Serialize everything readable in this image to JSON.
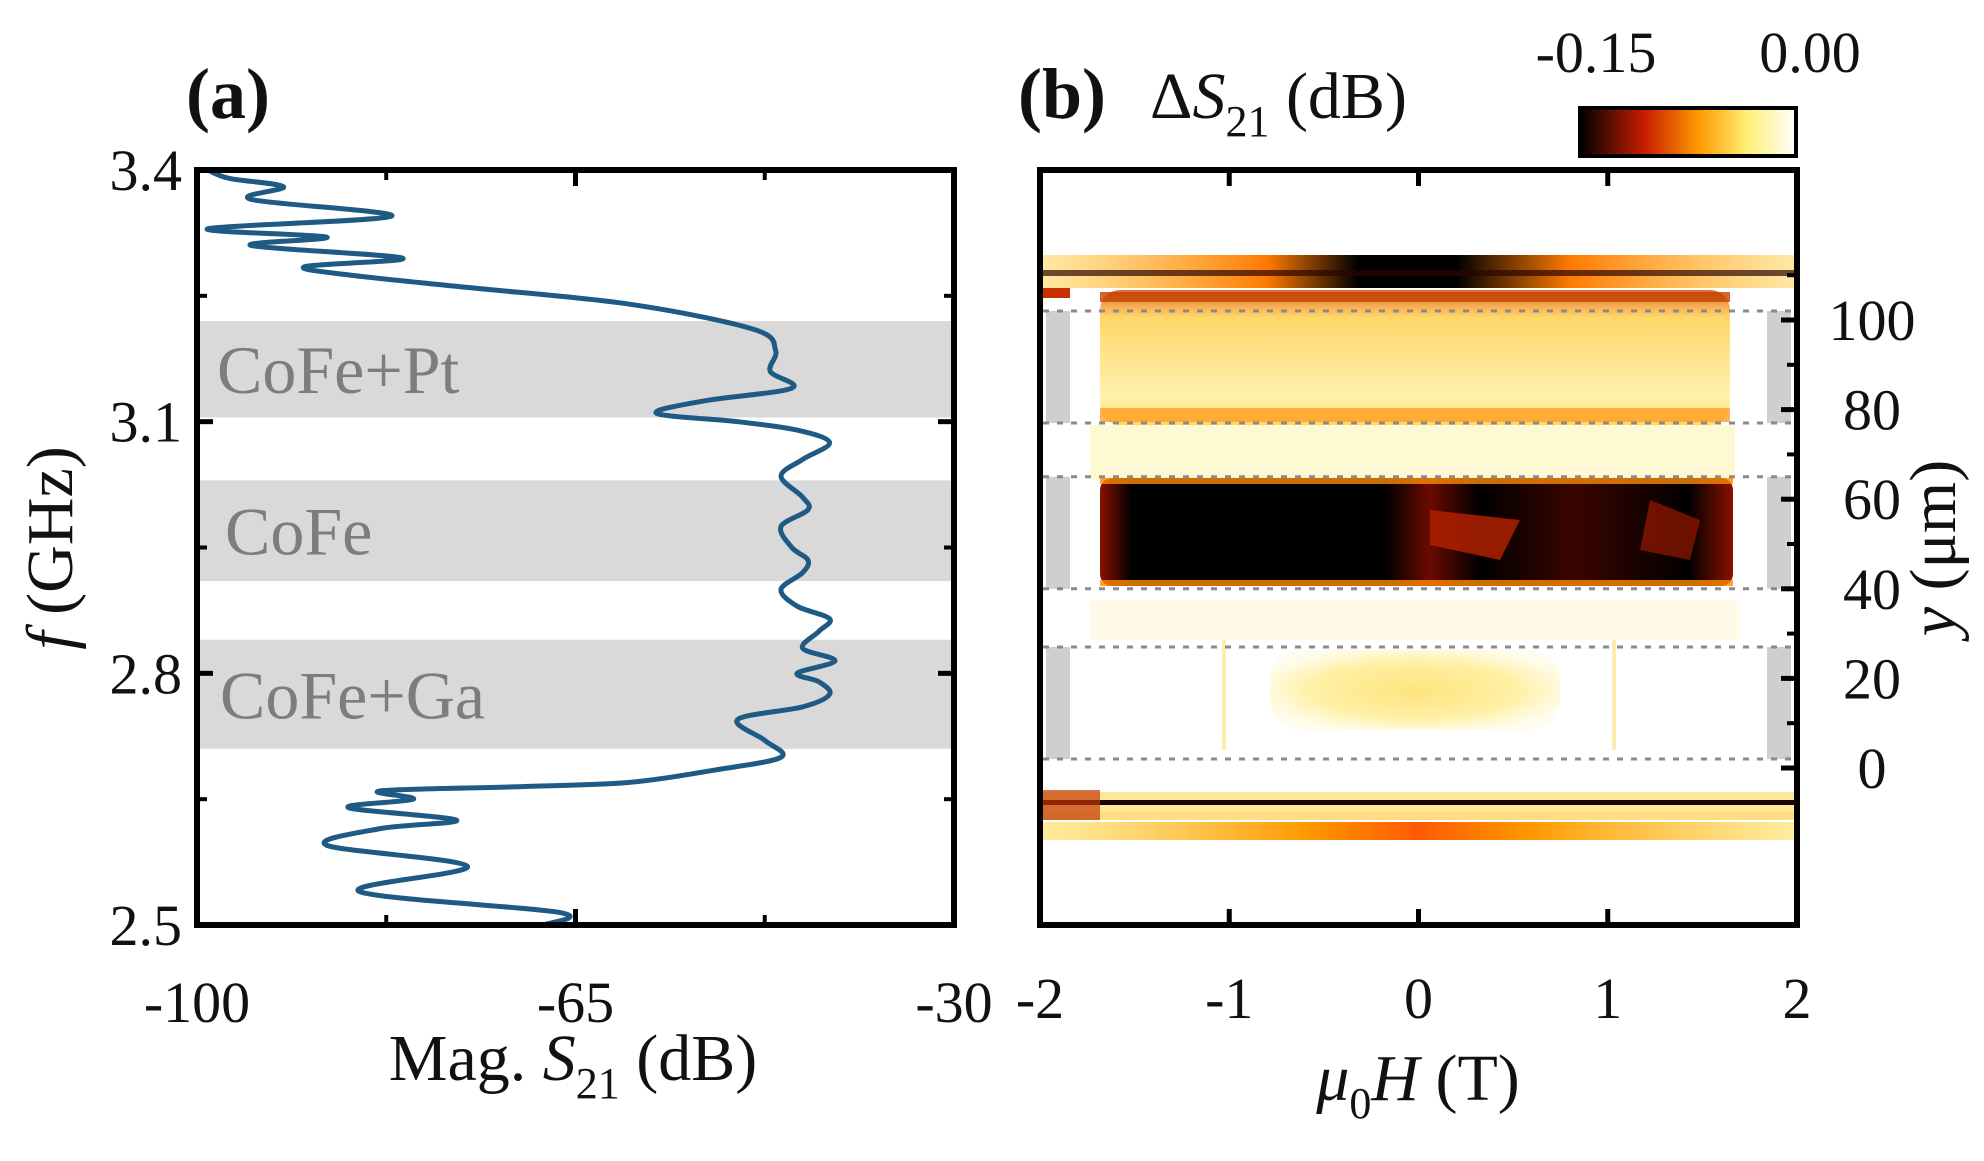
{
  "chart_data": [
    {
      "panel_label": "(a)",
      "type": "line",
      "xlabel": "Mag. S21 (dB)",
      "ylabel": "f (GHz)",
      "xlim": [
        -100,
        -30
      ],
      "ylim": [
        2.5,
        3.4
      ],
      "xticks": [
        "-100",
        "-65",
        "-30"
      ],
      "yticks": [
        "2.5",
        "2.8",
        "3.1",
        "3.4"
      ],
      "line_color": "#1f5a85",
      "bands": [
        {
          "label": "CoFe+Pt",
          "range": [
            3.105,
            3.22
          ],
          "color": "#d9d9d9"
        },
        {
          "label": "CoFe",
          "range": [
            2.91,
            3.03
          ],
          "color": "#d9d9d9"
        },
        {
          "label": "CoFe+Ga",
          "range": [
            2.71,
            2.84
          ],
          "color": "#d9d9d9"
        }
      ],
      "series": [
        {
          "points": [
            [
              -68.0,
              2.5
            ],
            [
              -66.5,
              2.515
            ],
            [
              -85.0,
              2.54
            ],
            [
              -75.0,
              2.57
            ],
            [
              -88.0,
              2.595
            ],
            [
              -83.0,
              2.615
            ],
            [
              -76.0,
              2.625
            ],
            [
              -86.0,
              2.64
            ],
            [
              -80.0,
              2.65
            ],
            [
              -83.0,
              2.66
            ],
            [
              -70.0,
              2.665
            ],
            [
              -60.0,
              2.67
            ],
            [
              -52.0,
              2.685
            ],
            [
              -46.0,
              2.7
            ],
            [
              -47.5,
              2.72
            ],
            [
              -50.0,
              2.745
            ],
            [
              -44.0,
              2.76
            ],
            [
              -41.5,
              2.775
            ],
            [
              -42.5,
              2.79
            ],
            [
              -44.5,
              2.8
            ],
            [
              -41.0,
              2.815
            ],
            [
              -44.0,
              2.83
            ],
            [
              -42.5,
              2.85
            ],
            [
              -41.5,
              2.865
            ],
            [
              -44.5,
              2.88
            ],
            [
              -46.0,
              2.9
            ],
            [
              -44.0,
              2.92
            ],
            [
              -43.5,
              2.935
            ],
            [
              -45.0,
              2.95
            ],
            [
              -46.0,
              2.975
            ],
            [
              -43.5,
              2.995
            ],
            [
              -44.0,
              3.01
            ],
            [
              -46.0,
              3.035
            ],
            [
              -44.0,
              3.055
            ],
            [
              -41.5,
              3.075
            ],
            [
              -44.5,
              3.09
            ],
            [
              -50.0,
              3.1
            ],
            [
              -57.5,
              3.11
            ],
            [
              -53.0,
              3.125
            ],
            [
              -45.0,
              3.14
            ],
            [
              -47.0,
              3.16
            ],
            [
              -46.5,
              3.185
            ],
            [
              -48.5,
              3.21
            ],
            [
              -60.0,
              3.24
            ],
            [
              -75.0,
              3.26
            ],
            [
              -86.0,
              3.275
            ],
            [
              -90.0,
              3.285
            ],
            [
              -81.0,
              3.295
            ],
            [
              -95.0,
              3.31
            ],
            [
              -88.0,
              3.32
            ],
            [
              -99.0,
              3.33
            ],
            [
              -82.0,
              3.345
            ],
            [
              -95.0,
              3.365
            ],
            [
              -92.0,
              3.38
            ],
            [
              -97.0,
              3.39
            ],
            [
              -99.0,
              3.4
            ]
          ]
        }
      ]
    },
    {
      "panel_label": "(b)",
      "type": "heatmap",
      "title": "ΔS21 (dB)",
      "xlabel": "μ0H (T)",
      "ylabel": "y (μm)",
      "xlim": [
        -2,
        2
      ],
      "xticks": [
        "-2",
        "-1",
        "0",
        "1",
        "2"
      ],
      "yticks": [
        "0",
        "20",
        "40",
        "60",
        "80",
        "100"
      ],
      "colorbar": {
        "min": -0.15,
        "max": 0.0,
        "min_label": "-0.15",
        "max_label": "0.00",
        "colors": [
          "#000000",
          "#c81e00",
          "#ff9a00",
          "#fff07a",
          "#ffffff"
        ]
      },
      "strip_boundaries_um": [
        [
          2,
          27
        ],
        [
          40,
          65
        ],
        [
          77,
          102
        ]
      ],
      "features": [
        {
          "region": "strip y 40-65 um",
          "field_range": [
            -1.7,
            1.7
          ],
          "value": -0.15
        },
        {
          "region": "strip y 77-102 um",
          "field_range": [
            -1.7,
            1.7
          ],
          "value": -0.03
        },
        {
          "region": "strip y 2-27 um",
          "field_range": [
            -0.8,
            0.7
          ],
          "value": -0.01
        },
        {
          "region": "edge y 110 um",
          "field_range": [
            -2,
            2
          ],
          "value": -0.15
        },
        {
          "region": "edge y -13 um",
          "field_range": [
            -2,
            2
          ],
          "value": -0.1
        }
      ]
    }
  ]
}
